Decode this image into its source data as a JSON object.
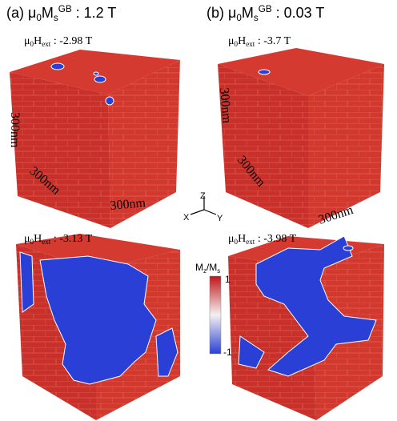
{
  "titles": [
    {
      "label": "(a)",
      "symbol": "μ",
      "sub0": "0",
      "M": "M",
      "sub": "s",
      "sup": "GB",
      "value": ": 1.2 T"
    },
    {
      "label": "(b)",
      "symbol": "μ",
      "sub0": "0",
      "M": "M",
      "sub": "s",
      "sup": "GB",
      "value": ": 0.03 T"
    }
  ],
  "fields": [
    {
      "symbol": "μ",
      "sub0": "0",
      "H": "H",
      "sub": "ext",
      "value": ": -2.98 T"
    },
    {
      "symbol": "μ",
      "sub0": "0",
      "H": "H",
      "sub": "ext",
      "value": ": -3.7 T"
    },
    {
      "symbol": "μ",
      "sub0": "0",
      "H": "H",
      "sub": "ext",
      "value": ": -3.13 T"
    },
    {
      "symbol": "μ",
      "sub0": "0",
      "H": "H",
      "sub": "ext",
      "value": ": -3.98 T"
    }
  ],
  "dimensions": [
    "300nm",
    "300nm",
    "300nm",
    "300nm",
    "300nm",
    "300nm"
  ],
  "axes": [
    "Z",
    "X",
    "Y"
  ],
  "colorbar": {
    "M": "M",
    "sub1": "z",
    "slash": "/",
    "M2": "M",
    "sub2": "s",
    "max": "1",
    "min": "-1"
  }
}
